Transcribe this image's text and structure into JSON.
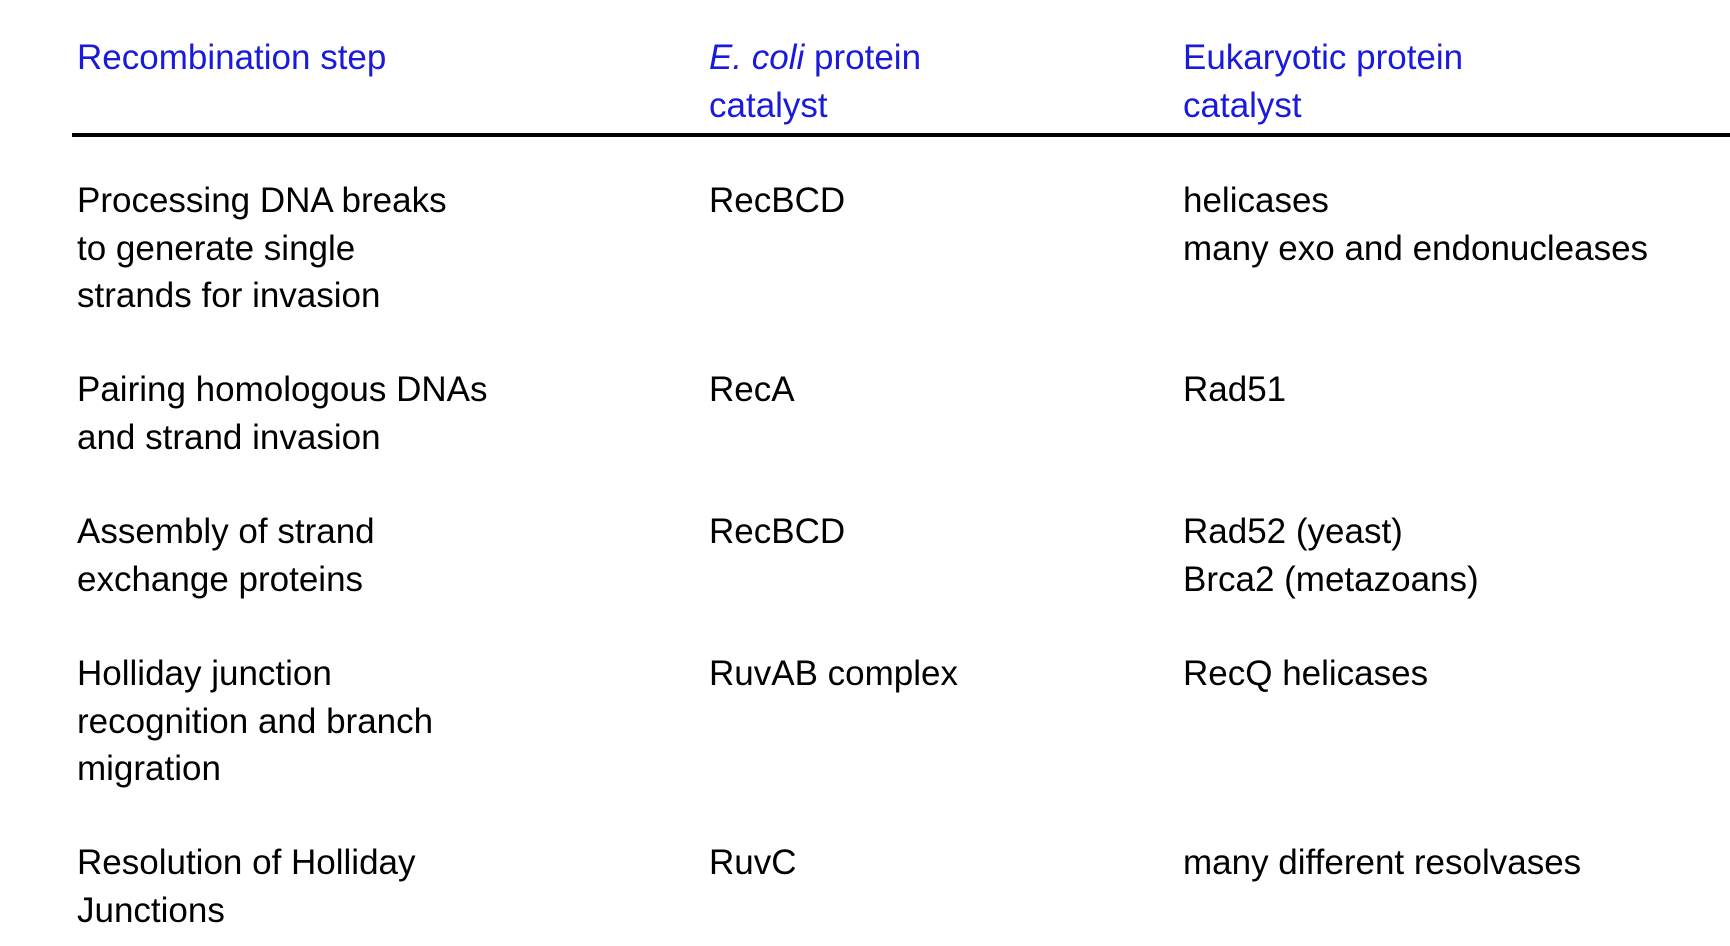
{
  "table": {
    "headers": [
      {
        "text": "Recombination step"
      },
      {
        "italic": "E. coli",
        "text": " protein\ncatalyst"
      },
      {
        "text": "Eukaryotic protein\ncatalyst"
      }
    ],
    "rows": [
      {
        "step": "Processing DNA breaks\nto generate single\nstrands for invasion",
        "ecoli": "RecBCD",
        "eukaryotic": "helicases\nmany exo and endonucleases"
      },
      {
        "step": "Pairing homologous DNAs\nand strand invasion",
        "ecoli": "RecA",
        "eukaryotic": "Rad51"
      },
      {
        "step": "Assembly of strand\nexchange proteins",
        "ecoli": "RecBCD",
        "eukaryotic": "Rad52 (yeast)\nBrca2 (metazoans)"
      },
      {
        "step": "Holliday junction\nrecognition and branch\nmigration",
        "ecoli": "RuvAB complex",
        "eukaryotic": "RecQ helicases"
      },
      {
        "step": "Resolution of Holliday\nJunctions",
        "ecoli": "RuvC",
        "eukaryotic": "many different resolvases"
      }
    ]
  },
  "colors": {
    "header_text": "#1a1adb",
    "body_text": "#000000",
    "rule": "#000000"
  }
}
